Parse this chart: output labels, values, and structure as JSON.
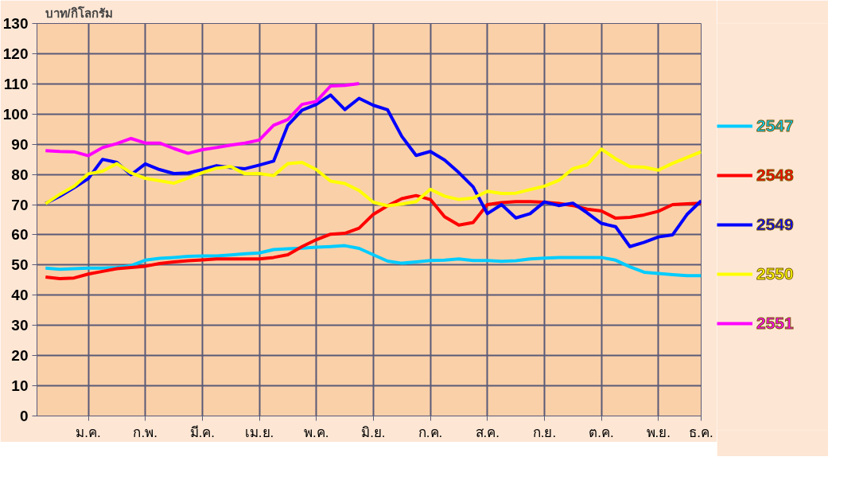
{
  "chart_data": {
    "type": "line",
    "ylabel": "บาท/กิโลกรัม",
    "categories": [
      null,
      null,
      null,
      "ม.ค.",
      null,
      null,
      null,
      "ก.พ.",
      null,
      null,
      null,
      "มี.ค.",
      null,
      null,
      null,
      "เม.ย.",
      null,
      null,
      null,
      "พ.ค.",
      null,
      null,
      null,
      "มิ.ย.",
      null,
      null,
      null,
      "ก.ค.",
      null,
      null,
      null,
      "ส.ค.",
      null,
      null,
      null,
      "ก.ย.",
      null,
      null,
      null,
      "ต.ค.",
      null,
      null,
      null,
      "พ.ย.",
      null,
      null,
      "ธ.ค."
    ],
    "ylim": [
      0,
      130
    ],
    "yticks": [
      0,
      10,
      20,
      30,
      40,
      50,
      60,
      70,
      80,
      90,
      100,
      110,
      120,
      130
    ],
    "grid": true,
    "legend": "right",
    "marker": "none",
    "line_style": "solid",
    "series": [
      {
        "name": "2547",
        "color": "#00ccff",
        "values": [
          49,
          48.6,
          48.8,
          49,
          49,
          49.2,
          49.8,
          51.6,
          52.2,
          52.5,
          52.9,
          53,
          53,
          53.3,
          53.7,
          54,
          55.1,
          55.4,
          55.6,
          55.9,
          56.1,
          56.4,
          55.5,
          53.4,
          51.3,
          50.6,
          51,
          51.5,
          51.6,
          52,
          51.5,
          51.5,
          51.2,
          51.4,
          52,
          52.3,
          52.5,
          52.5,
          52.5,
          52.5,
          51.6,
          49.4,
          47.6,
          47.2,
          46.8,
          46.5,
          46.5
        ]
      },
      {
        "name": "2548",
        "color": "#ff0000",
        "values": [
          46,
          45.5,
          45.7,
          47,
          47.9,
          48.8,
          49.2,
          49.6,
          50.5,
          51,
          51.4,
          51.7,
          52,
          52,
          52,
          52,
          52.5,
          53.4,
          56.1,
          58.4,
          60.2,
          60.5,
          62.2,
          66.8,
          69.6,
          72,
          73,
          71.7,
          66,
          63.2,
          64.1,
          70,
          70.7,
          71,
          71,
          70.8,
          70.4,
          69.7,
          68.5,
          67.9,
          65.5,
          65.8,
          66.6,
          67.8,
          70,
          70.3,
          70.5
        ]
      },
      {
        "name": "2549",
        "color": "#0000ff",
        "values": [
          70.4,
          72.8,
          75.6,
          78.6,
          85,
          84,
          79.9,
          83.5,
          81.6,
          80.3,
          80.5,
          81.6,
          82.9,
          82.3,
          81.9,
          83.1,
          84.4,
          96.3,
          101.3,
          103.2,
          106.3,
          101.5,
          105.2,
          102.9,
          101.4,
          92.6,
          86.3,
          87.6,
          84.8,
          80.6,
          75.9,
          67,
          70,
          65.6,
          67,
          70.9,
          69.7,
          70.5,
          67.3,
          63.8,
          62.7,
          56.1,
          57.5,
          59.3,
          60,
          66.7,
          71.3
        ]
      },
      {
        "name": "2550",
        "color": "#ffff00",
        "values": [
          70.3,
          73.4,
          76.1,
          80.2,
          81.1,
          83.6,
          80.5,
          78.7,
          77.9,
          77.1,
          78.8,
          80.6,
          82.1,
          82.6,
          80.2,
          80.3,
          79.6,
          83.6,
          84,
          81.6,
          77.8,
          77,
          74.7,
          70.8,
          69.6,
          70.2,
          71,
          75.1,
          72.8,
          71.7,
          72.2,
          74.4,
          73.7,
          73.8,
          75,
          76.1,
          78,
          81.9,
          83.2,
          88.4,
          85.2,
          82.6,
          82.4,
          81.4,
          83.7,
          85.6,
          87.5
        ]
      },
      {
        "name": "2551",
        "color": "#ff00ff",
        "values": [
          87.9,
          87.6,
          87.5,
          86.2,
          88.9,
          90.2,
          91.9,
          90.4,
          90.4,
          88.6,
          87,
          88.2,
          88.9,
          89.7,
          90.4,
          91.4,
          96.3,
          98.2,
          103.2,
          104.2,
          109.3,
          109.5,
          110.1,
          null,
          null,
          null,
          null,
          null,
          null,
          null,
          null,
          null,
          null,
          null,
          null,
          null,
          null,
          null,
          null,
          null,
          null,
          null,
          null,
          null,
          null,
          null,
          null
        ]
      }
    ]
  }
}
